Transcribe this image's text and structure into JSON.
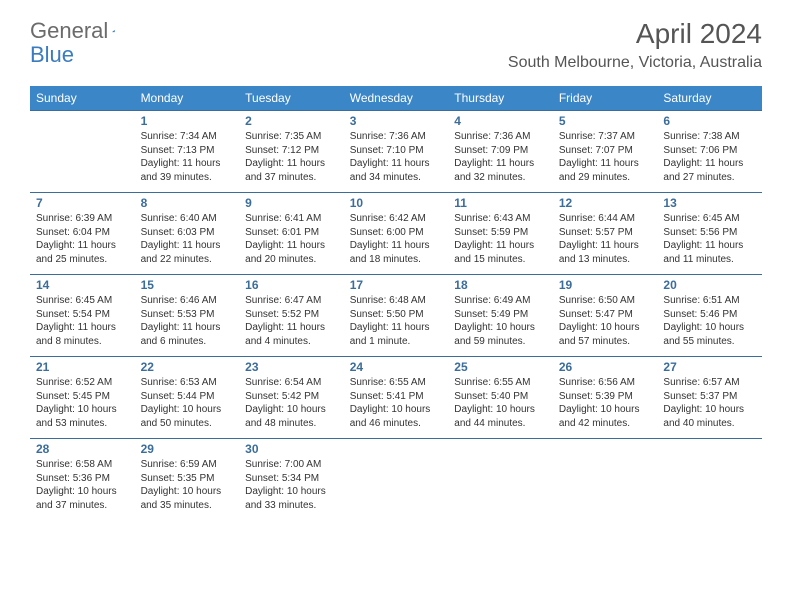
{
  "colors": {
    "header_bg": "#3b86c7",
    "header_text": "#ffffff",
    "cell_border": "#3b6d9a",
    "datenum": "#3b6d9a",
    "body_text": "#333333",
    "title_text": "#555555",
    "logo_gray": "#6b6b6b",
    "logo_blue": "#3b7bbf"
  },
  "logo": {
    "part1": "General",
    "part2": "Blue"
  },
  "title": "April 2024",
  "location": "South Melbourne, Victoria, Australia",
  "weekdays": [
    "Sunday",
    "Monday",
    "Tuesday",
    "Wednesday",
    "Thursday",
    "Friday",
    "Saturday"
  ],
  "weeks": [
    [
      null,
      {
        "d": "1",
        "sr": "Sunrise: 7:34 AM",
        "ss": "Sunset: 7:13 PM",
        "dl1": "Daylight: 11 hours",
        "dl2": "and 39 minutes."
      },
      {
        "d": "2",
        "sr": "Sunrise: 7:35 AM",
        "ss": "Sunset: 7:12 PM",
        "dl1": "Daylight: 11 hours",
        "dl2": "and 37 minutes."
      },
      {
        "d": "3",
        "sr": "Sunrise: 7:36 AM",
        "ss": "Sunset: 7:10 PM",
        "dl1": "Daylight: 11 hours",
        "dl2": "and 34 minutes."
      },
      {
        "d": "4",
        "sr": "Sunrise: 7:36 AM",
        "ss": "Sunset: 7:09 PM",
        "dl1": "Daylight: 11 hours",
        "dl2": "and 32 minutes."
      },
      {
        "d": "5",
        "sr": "Sunrise: 7:37 AM",
        "ss": "Sunset: 7:07 PM",
        "dl1": "Daylight: 11 hours",
        "dl2": "and 29 minutes."
      },
      {
        "d": "6",
        "sr": "Sunrise: 7:38 AM",
        "ss": "Sunset: 7:06 PM",
        "dl1": "Daylight: 11 hours",
        "dl2": "and 27 minutes."
      }
    ],
    [
      {
        "d": "7",
        "sr": "Sunrise: 6:39 AM",
        "ss": "Sunset: 6:04 PM",
        "dl1": "Daylight: 11 hours",
        "dl2": "and 25 minutes."
      },
      {
        "d": "8",
        "sr": "Sunrise: 6:40 AM",
        "ss": "Sunset: 6:03 PM",
        "dl1": "Daylight: 11 hours",
        "dl2": "and 22 minutes."
      },
      {
        "d": "9",
        "sr": "Sunrise: 6:41 AM",
        "ss": "Sunset: 6:01 PM",
        "dl1": "Daylight: 11 hours",
        "dl2": "and 20 minutes."
      },
      {
        "d": "10",
        "sr": "Sunrise: 6:42 AM",
        "ss": "Sunset: 6:00 PM",
        "dl1": "Daylight: 11 hours",
        "dl2": "and 18 minutes."
      },
      {
        "d": "11",
        "sr": "Sunrise: 6:43 AM",
        "ss": "Sunset: 5:59 PM",
        "dl1": "Daylight: 11 hours",
        "dl2": "and 15 minutes."
      },
      {
        "d": "12",
        "sr": "Sunrise: 6:44 AM",
        "ss": "Sunset: 5:57 PM",
        "dl1": "Daylight: 11 hours",
        "dl2": "and 13 minutes."
      },
      {
        "d": "13",
        "sr": "Sunrise: 6:45 AM",
        "ss": "Sunset: 5:56 PM",
        "dl1": "Daylight: 11 hours",
        "dl2": "and 11 minutes."
      }
    ],
    [
      {
        "d": "14",
        "sr": "Sunrise: 6:45 AM",
        "ss": "Sunset: 5:54 PM",
        "dl1": "Daylight: 11 hours",
        "dl2": "and 8 minutes."
      },
      {
        "d": "15",
        "sr": "Sunrise: 6:46 AM",
        "ss": "Sunset: 5:53 PM",
        "dl1": "Daylight: 11 hours",
        "dl2": "and 6 minutes."
      },
      {
        "d": "16",
        "sr": "Sunrise: 6:47 AM",
        "ss": "Sunset: 5:52 PM",
        "dl1": "Daylight: 11 hours",
        "dl2": "and 4 minutes."
      },
      {
        "d": "17",
        "sr": "Sunrise: 6:48 AM",
        "ss": "Sunset: 5:50 PM",
        "dl1": "Daylight: 11 hours",
        "dl2": "and 1 minute."
      },
      {
        "d": "18",
        "sr": "Sunrise: 6:49 AM",
        "ss": "Sunset: 5:49 PM",
        "dl1": "Daylight: 10 hours",
        "dl2": "and 59 minutes."
      },
      {
        "d": "19",
        "sr": "Sunrise: 6:50 AM",
        "ss": "Sunset: 5:47 PM",
        "dl1": "Daylight: 10 hours",
        "dl2": "and 57 minutes."
      },
      {
        "d": "20",
        "sr": "Sunrise: 6:51 AM",
        "ss": "Sunset: 5:46 PM",
        "dl1": "Daylight: 10 hours",
        "dl2": "and 55 minutes."
      }
    ],
    [
      {
        "d": "21",
        "sr": "Sunrise: 6:52 AM",
        "ss": "Sunset: 5:45 PM",
        "dl1": "Daylight: 10 hours",
        "dl2": "and 53 minutes."
      },
      {
        "d": "22",
        "sr": "Sunrise: 6:53 AM",
        "ss": "Sunset: 5:44 PM",
        "dl1": "Daylight: 10 hours",
        "dl2": "and 50 minutes."
      },
      {
        "d": "23",
        "sr": "Sunrise: 6:54 AM",
        "ss": "Sunset: 5:42 PM",
        "dl1": "Daylight: 10 hours",
        "dl2": "and 48 minutes."
      },
      {
        "d": "24",
        "sr": "Sunrise: 6:55 AM",
        "ss": "Sunset: 5:41 PM",
        "dl1": "Daylight: 10 hours",
        "dl2": "and 46 minutes."
      },
      {
        "d": "25",
        "sr": "Sunrise: 6:55 AM",
        "ss": "Sunset: 5:40 PM",
        "dl1": "Daylight: 10 hours",
        "dl2": "and 44 minutes."
      },
      {
        "d": "26",
        "sr": "Sunrise: 6:56 AM",
        "ss": "Sunset: 5:39 PM",
        "dl1": "Daylight: 10 hours",
        "dl2": "and 42 minutes."
      },
      {
        "d": "27",
        "sr": "Sunrise: 6:57 AM",
        "ss": "Sunset: 5:37 PM",
        "dl1": "Daylight: 10 hours",
        "dl2": "and 40 minutes."
      }
    ],
    [
      {
        "d": "28",
        "sr": "Sunrise: 6:58 AM",
        "ss": "Sunset: 5:36 PM",
        "dl1": "Daylight: 10 hours",
        "dl2": "and 37 minutes."
      },
      {
        "d": "29",
        "sr": "Sunrise: 6:59 AM",
        "ss": "Sunset: 5:35 PM",
        "dl1": "Daylight: 10 hours",
        "dl2": "and 35 minutes."
      },
      {
        "d": "30",
        "sr": "Sunrise: 7:00 AM",
        "ss": "Sunset: 5:34 PM",
        "dl1": "Daylight: 10 hours",
        "dl2": "and 33 minutes."
      },
      null,
      null,
      null,
      null
    ]
  ]
}
